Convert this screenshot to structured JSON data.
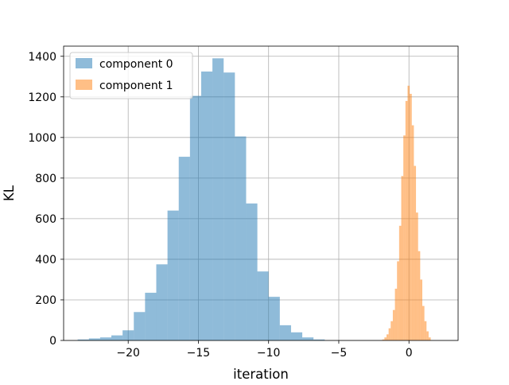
{
  "chart_data": {
    "type": "bar",
    "title": "",
    "xlabel": "iteration",
    "ylabel": "KL",
    "xlim": [
      -24.6,
      3.5
    ],
    "ylim": [
      0,
      1450
    ],
    "grid": true,
    "legend_position": "top-left",
    "xticks": [
      -20,
      -15,
      -10,
      -5,
      0
    ],
    "xtick_labels": [
      "−20",
      "−15",
      "−10",
      "−5",
      "0"
    ],
    "yticks": [
      0,
      200,
      400,
      600,
      800,
      1000,
      1200,
      1400
    ],
    "ytick_labels": [
      "0",
      "200",
      "400",
      "600",
      "800",
      "1000",
      "1200",
      "1400"
    ],
    "series": [
      {
        "name": "component 0",
        "color": "#1f77b4",
        "alpha": 0.5,
        "bins": [
          [
            -23.6,
            -22.8,
            5
          ],
          [
            -22.8,
            -22.0,
            10
          ],
          [
            -22.0,
            -21.2,
            15
          ],
          [
            -21.2,
            -20.4,
            25
          ],
          [
            -20.4,
            -19.6,
            50
          ],
          [
            -19.6,
            -18.8,
            140
          ],
          [
            -18.8,
            -18.0,
            235
          ],
          [
            -18.0,
            -17.2,
            375
          ],
          [
            -17.2,
            -16.4,
            640
          ],
          [
            -16.4,
            -15.6,
            905
          ],
          [
            -15.6,
            -14.8,
            1205
          ],
          [
            -14.8,
            -14.0,
            1325
          ],
          [
            -14.0,
            -13.2,
            1390
          ],
          [
            -13.2,
            -12.4,
            1320
          ],
          [
            -12.4,
            -11.6,
            1005
          ],
          [
            -11.6,
            -10.8,
            675
          ],
          [
            -10.8,
            -10.0,
            340
          ],
          [
            -10.0,
            -9.2,
            215
          ],
          [
            -9.2,
            -8.4,
            75
          ],
          [
            -8.4,
            -7.6,
            40
          ],
          [
            -7.6,
            -6.8,
            15
          ],
          [
            -6.8,
            -6.0,
            5
          ]
        ]
      },
      {
        "name": "component 1",
        "color": "#ff7f0e",
        "alpha": 0.5,
        "bins": [
          [
            -1.9,
            -1.75,
            5
          ],
          [
            -1.75,
            -1.6,
            15
          ],
          [
            -1.6,
            -1.45,
            30
          ],
          [
            -1.45,
            -1.3,
            60
          ],
          [
            -1.3,
            -1.15,
            95
          ],
          [
            -1.15,
            -1.0,
            150
          ],
          [
            -1.0,
            -0.85,
            255
          ],
          [
            -0.85,
            -0.7,
            390
          ],
          [
            -0.7,
            -0.55,
            565
          ],
          [
            -0.55,
            -0.4,
            810
          ],
          [
            -0.4,
            -0.25,
            1010
          ],
          [
            -0.25,
            -0.1,
            1180
          ],
          [
            -0.1,
            0.05,
            1255
          ],
          [
            0.05,
            0.2,
            1215
          ],
          [
            0.2,
            0.35,
            1060
          ],
          [
            0.35,
            0.5,
            860
          ],
          [
            0.5,
            0.65,
            630
          ],
          [
            0.65,
            0.8,
            440
          ],
          [
            0.8,
            0.95,
            300
          ],
          [
            0.95,
            1.1,
            170
          ],
          [
            1.1,
            1.25,
            95
          ],
          [
            1.25,
            1.4,
            45
          ],
          [
            1.4,
            1.55,
            15
          ]
        ]
      }
    ]
  }
}
